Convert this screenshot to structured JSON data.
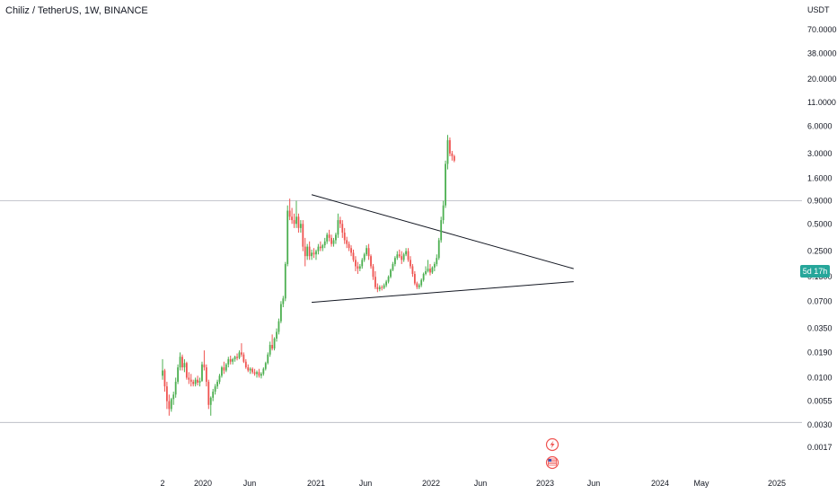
{
  "header": {
    "symbol": "Chiliz / TetherUS, 1W, BINANCE",
    "currency": "USDT"
  },
  "countdown": {
    "text": "5d 17h",
    "color": "#26a69a"
  },
  "colors": {
    "up": "#4caf50",
    "down": "#ef5350",
    "trendline": "#131722",
    "hline": "#b2b5be"
  },
  "icons": {
    "event_1": "lightning-icon",
    "event_2": "flag-icon"
  },
  "chart_data": {
    "type": "candlestick",
    "scale": "log",
    "yaxis_ticks": [
      "70.0000",
      "38.0000",
      "20.0000",
      "11.0000",
      "6.0000",
      "3.0000",
      "1.6000",
      "0.9000",
      "0.5000",
      "0.2500",
      "0.1300",
      "0.0700",
      "0.0350",
      "0.0190",
      "0.0100",
      "0.0055",
      "0.0030",
      "0.0017"
    ],
    "xaxis_ticks": [
      "2",
      "2020",
      "Jun",
      "2021",
      "Jun",
      "2022",
      "Jun",
      "2023",
      "Jun",
      "2024",
      "May",
      "2025"
    ],
    "horizontal_lines": [
      0.9,
      0.0032
    ],
    "trendlines": [
      {
        "from": [
          "2021-01",
          1.05
        ],
        "to": [
          "2023-04",
          0.16
        ]
      },
      {
        "from": [
          "2021-01",
          0.068
        ],
        "to": [
          "2023-04",
          0.115
        ]
      }
    ],
    "candles": [
      [
        0.0105,
        0.016,
        0.0095,
        0.012
      ],
      [
        0.012,
        0.0125,
        0.007,
        0.008
      ],
      [
        0.008,
        0.009,
        0.0045,
        0.0055
      ],
      [
        0.0055,
        0.0065,
        0.0038,
        0.0045
      ],
      [
        0.0045,
        0.006,
        0.0042,
        0.0058
      ],
      [
        0.0058,
        0.007,
        0.005,
        0.0065
      ],
      [
        0.0065,
        0.01,
        0.006,
        0.009
      ],
      [
        0.009,
        0.014,
        0.0085,
        0.013
      ],
      [
        0.013,
        0.019,
        0.012,
        0.017
      ],
      [
        0.017,
        0.018,
        0.012,
        0.013
      ],
      [
        0.013,
        0.016,
        0.0115,
        0.0145
      ],
      [
        0.0145,
        0.015,
        0.0095,
        0.01
      ],
      [
        0.01,
        0.0115,
        0.0085,
        0.0095
      ],
      [
        0.0095,
        0.011,
        0.008,
        0.009
      ],
      [
        0.009,
        0.0095,
        0.008,
        0.0085
      ],
      [
        0.0085,
        0.01,
        0.008,
        0.0095
      ],
      [
        0.0095,
        0.0105,
        0.0082,
        0.0088
      ],
      [
        0.0088,
        0.01,
        0.008,
        0.0092
      ],
      [
        0.0092,
        0.015,
        0.009,
        0.014
      ],
      [
        0.014,
        0.02,
        0.012,
        0.013
      ],
      [
        0.013,
        0.014,
        0.008,
        0.009
      ],
      [
        0.009,
        0.0095,
        0.0045,
        0.005
      ],
      [
        0.005,
        0.0062,
        0.0038,
        0.006
      ],
      [
        0.006,
        0.0075,
        0.0055,
        0.007
      ],
      [
        0.007,
        0.0085,
        0.0065,
        0.008
      ],
      [
        0.008,
        0.0095,
        0.0075,
        0.009
      ],
      [
        0.009,
        0.011,
        0.0085,
        0.0105
      ],
      [
        0.0105,
        0.0135,
        0.01,
        0.013
      ],
      [
        0.013,
        0.015,
        0.011,
        0.012
      ],
      [
        0.012,
        0.0145,
        0.0115,
        0.014
      ],
      [
        0.014,
        0.017,
        0.013,
        0.016
      ],
      [
        0.016,
        0.0175,
        0.014,
        0.015
      ],
      [
        0.015,
        0.0165,
        0.014,
        0.016
      ],
      [
        0.016,
        0.0175,
        0.015,
        0.017
      ],
      [
        0.017,
        0.0185,
        0.0155,
        0.0165
      ],
      [
        0.0165,
        0.02,
        0.016,
        0.019
      ],
      [
        0.019,
        0.024,
        0.017,
        0.018
      ],
      [
        0.018,
        0.019,
        0.0145,
        0.015
      ],
      [
        0.015,
        0.016,
        0.0125,
        0.013
      ],
      [
        0.013,
        0.014,
        0.0115,
        0.012
      ],
      [
        0.012,
        0.013,
        0.011,
        0.0125
      ],
      [
        0.0125,
        0.013,
        0.011,
        0.0115
      ],
      [
        0.0115,
        0.0125,
        0.0105,
        0.011
      ],
      [
        0.011,
        0.012,
        0.01,
        0.0115
      ],
      [
        0.0115,
        0.0125,
        0.01,
        0.0105
      ],
      [
        0.0105,
        0.0115,
        0.0098,
        0.011
      ],
      [
        0.011,
        0.013,
        0.0105,
        0.0125
      ],
      [
        0.0125,
        0.015,
        0.012,
        0.0145
      ],
      [
        0.0145,
        0.019,
        0.014,
        0.018
      ],
      [
        0.018,
        0.025,
        0.017,
        0.023
      ],
      [
        0.023,
        0.03,
        0.02,
        0.021
      ],
      [
        0.021,
        0.028,
        0.02,
        0.027
      ],
      [
        0.027,
        0.035,
        0.025,
        0.032
      ],
      [
        0.032,
        0.045,
        0.03,
        0.042
      ],
      [
        0.042,
        0.07,
        0.04,
        0.065
      ],
      [
        0.065,
        0.08,
        0.06,
        0.075
      ],
      [
        0.075,
        0.19,
        0.07,
        0.18
      ],
      [
        0.18,
        0.8,
        0.17,
        0.7
      ],
      [
        0.7,
        0.95,
        0.55,
        0.6
      ],
      [
        0.6,
        0.75,
        0.5,
        0.55
      ],
      [
        0.55,
        0.65,
        0.45,
        0.5
      ],
      [
        0.5,
        0.9,
        0.45,
        0.6
      ],
      [
        0.6,
        0.65,
        0.4,
        0.45
      ],
      [
        0.45,
        0.55,
        0.4,
        0.5
      ],
      [
        0.5,
        0.55,
        0.25,
        0.28
      ],
      [
        0.28,
        0.35,
        0.17,
        0.22
      ],
      [
        0.22,
        0.3,
        0.2,
        0.28
      ],
      [
        0.28,
        0.32,
        0.2,
        0.22
      ],
      [
        0.22,
        0.26,
        0.2,
        0.24
      ],
      [
        0.24,
        0.27,
        0.21,
        0.23
      ],
      [
        0.23,
        0.26,
        0.2,
        0.25
      ],
      [
        0.25,
        0.3,
        0.23,
        0.28
      ],
      [
        0.28,
        0.32,
        0.25,
        0.27
      ],
      [
        0.27,
        0.3,
        0.25,
        0.29
      ],
      [
        0.29,
        0.35,
        0.27,
        0.32
      ],
      [
        0.32,
        0.4,
        0.3,
        0.38
      ],
      [
        0.38,
        0.43,
        0.32,
        0.35
      ],
      [
        0.35,
        0.38,
        0.28,
        0.3
      ],
      [
        0.3,
        0.35,
        0.28,
        0.33
      ],
      [
        0.33,
        0.4,
        0.3,
        0.38
      ],
      [
        0.38,
        0.65,
        0.35,
        0.55
      ],
      [
        0.55,
        0.6,
        0.45,
        0.5
      ],
      [
        0.5,
        0.55,
        0.35,
        0.4
      ],
      [
        0.4,
        0.45,
        0.3,
        0.33
      ],
      [
        0.33,
        0.36,
        0.27,
        0.3
      ],
      [
        0.3,
        0.32,
        0.25,
        0.27
      ],
      [
        0.27,
        0.29,
        0.22,
        0.24
      ],
      [
        0.24,
        0.26,
        0.19,
        0.2
      ],
      [
        0.2,
        0.22,
        0.15,
        0.17
      ],
      [
        0.17,
        0.19,
        0.14,
        0.16
      ],
      [
        0.16,
        0.18,
        0.15,
        0.17
      ],
      [
        0.17,
        0.21,
        0.16,
        0.2
      ],
      [
        0.2,
        0.24,
        0.19,
        0.23
      ],
      [
        0.23,
        0.29,
        0.22,
        0.27
      ],
      [
        0.27,
        0.3,
        0.2,
        0.22
      ],
      [
        0.22,
        0.23,
        0.16,
        0.17
      ],
      [
        0.17,
        0.18,
        0.12,
        0.13
      ],
      [
        0.13,
        0.15,
        0.095,
        0.1
      ],
      [
        0.1,
        0.11,
        0.088,
        0.095
      ],
      [
        0.095,
        0.105,
        0.09,
        0.1
      ],
      [
        0.1,
        0.105,
        0.092,
        0.098
      ],
      [
        0.098,
        0.11,
        0.095,
        0.105
      ],
      [
        0.105,
        0.12,
        0.1,
        0.115
      ],
      [
        0.115,
        0.135,
        0.11,
        0.13
      ],
      [
        0.13,
        0.16,
        0.125,
        0.155
      ],
      [
        0.155,
        0.19,
        0.15,
        0.18
      ],
      [
        0.18,
        0.22,
        0.17,
        0.21
      ],
      [
        0.21,
        0.25,
        0.2,
        0.23
      ],
      [
        0.23,
        0.26,
        0.21,
        0.22
      ],
      [
        0.22,
        0.25,
        0.18,
        0.2
      ],
      [
        0.2,
        0.24,
        0.19,
        0.23
      ],
      [
        0.23,
        0.27,
        0.22,
        0.25
      ],
      [
        0.25,
        0.27,
        0.19,
        0.2
      ],
      [
        0.2,
        0.22,
        0.16,
        0.17
      ],
      [
        0.17,
        0.18,
        0.13,
        0.14
      ],
      [
        0.14,
        0.15,
        0.105,
        0.11
      ],
      [
        0.11,
        0.115,
        0.095,
        0.1
      ],
      [
        0.1,
        0.11,
        0.095,
        0.105
      ],
      [
        0.105,
        0.125,
        0.1,
        0.12
      ],
      [
        0.12,
        0.145,
        0.115,
        0.14
      ],
      [
        0.14,
        0.17,
        0.135,
        0.15
      ],
      [
        0.15,
        0.2,
        0.145,
        0.16
      ],
      [
        0.16,
        0.18,
        0.135,
        0.145
      ],
      [
        0.145,
        0.17,
        0.14,
        0.165
      ],
      [
        0.165,
        0.19,
        0.15,
        0.18
      ],
      [
        0.18,
        0.23,
        0.17,
        0.21
      ],
      [
        0.21,
        0.35,
        0.2,
        0.33
      ],
      [
        0.33,
        0.6,
        0.31,
        0.55
      ],
      [
        0.55,
        0.9,
        0.5,
        0.8
      ],
      [
        0.8,
        2.5,
        0.75,
        2.3
      ],
      [
        2.3,
        4.8,
        2.0,
        4.2
      ],
      [
        4.2,
        4.5,
        2.8,
        3.0
      ],
      [
        3.0,
        3.2,
        2.5,
        2.8
      ],
      [
        2.8,
        2.9,
        2.4,
        2.5
      ]
    ]
  }
}
